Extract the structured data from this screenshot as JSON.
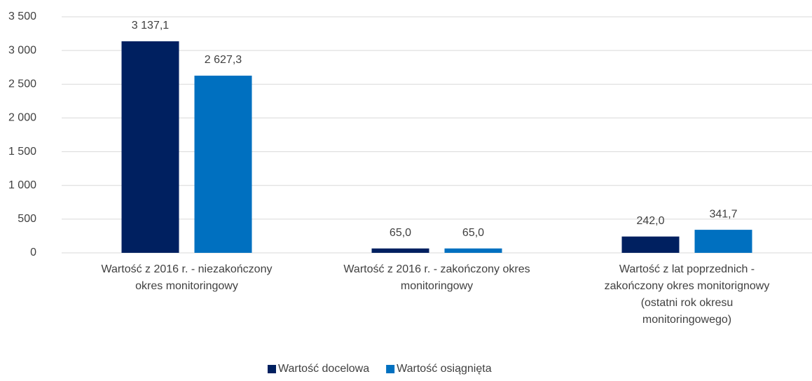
{
  "chart_data": {
    "type": "bar",
    "categories": [
      "Wartość z 2016 r. - niezakończony\nokres monitoringowy",
      "Wartość z 2016 r. - zakończony okres\nmonitoringowy",
      "Wartość z lat poprzednich -\nzakończony okres monitorignowy\n(ostatni rok okresu\nmonitoringowego)"
    ],
    "series": [
      {
        "name": "Wartość docelowa",
        "color": "#002060",
        "values": [
          3137.1,
          65.0,
          242.0
        ],
        "value_labels": [
          "3 137,1",
          "65,0",
          "242,0"
        ]
      },
      {
        "name": "Wartość osiągnięta",
        "color": "#0070c0",
        "values": [
          2627.3,
          65.0,
          341.7
        ],
        "value_labels": [
          "2 627,3",
          "65,0",
          "341,7"
        ]
      }
    ],
    "ylim": [
      0,
      3500
    ],
    "yticks": [
      0,
      500,
      {
        "value": 1000,
        "label": "1 000"
      },
      {
        "value": 1500,
        "label": "1 500"
      },
      {
        "value": 2000,
        "label": "2 000"
      },
      {
        "value": 2500,
        "label": "2 500"
      },
      {
        "value": 3000,
        "label": "3 000"
      },
      {
        "value": 3500,
        "label": "3 500"
      }
    ],
    "grid": true,
    "legend": "bottom"
  }
}
